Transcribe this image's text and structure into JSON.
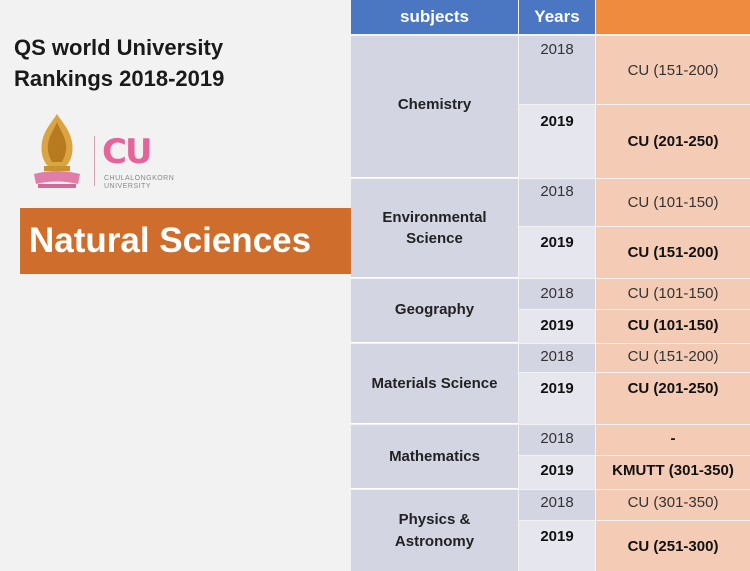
{
  "title": {
    "line1": "QS world University",
    "line2": "Rankings 2018-2019"
  },
  "logo": {
    "mark": "CU",
    "name_line1": "CHULALONGKORN",
    "name_line2": "UNIVERSITY"
  },
  "banner": "Natural Sciences",
  "table": {
    "headers": [
      "subjects",
      "Years",
      ""
    ],
    "colors": {
      "header_blue": "#4b76c2",
      "header_orange": "#ee8b3e",
      "subject_bg": "#d4d5e3",
      "rank_bg": "#f4cbb4"
    },
    "rows": [
      {
        "subject": "Chemistry",
        "entries": [
          {
            "year": "2018",
            "rank": "CU (151-200)"
          },
          {
            "year": "2019",
            "rank": "CU (201-250)"
          }
        ]
      },
      {
        "subject": "Environmental Science",
        "subject_lines": [
          "Environmental",
          "Science"
        ],
        "entries": [
          {
            "year": "2018",
            "rank": "CU (101-150)"
          },
          {
            "year": "2019",
            "rank": "CU (151-200)"
          }
        ]
      },
      {
        "subject": "Geography",
        "entries": [
          {
            "year": "2018",
            "rank": "CU (101-150)"
          },
          {
            "year": "2019",
            "rank": "CU (101-150)"
          }
        ]
      },
      {
        "subject": "Materials Science",
        "entries": [
          {
            "year": "2018",
            "rank": "CU (151-200)"
          },
          {
            "year": "2019",
            "rank": "CU (201-250)"
          }
        ]
      },
      {
        "subject": "Mathematics",
        "entries": [
          {
            "year": "2018",
            "rank": "-"
          },
          {
            "year": "2019",
            "rank": "KMUTT (301-350)"
          }
        ]
      },
      {
        "subject": "Physics & Astronomy",
        "subject_lines": [
          "Physics &",
          "Astronomy"
        ],
        "entries": [
          {
            "year": "2018",
            "rank": "CU (301-350)"
          },
          {
            "year": "2019",
            "rank": "CU (251-300)"
          }
        ]
      }
    ]
  }
}
